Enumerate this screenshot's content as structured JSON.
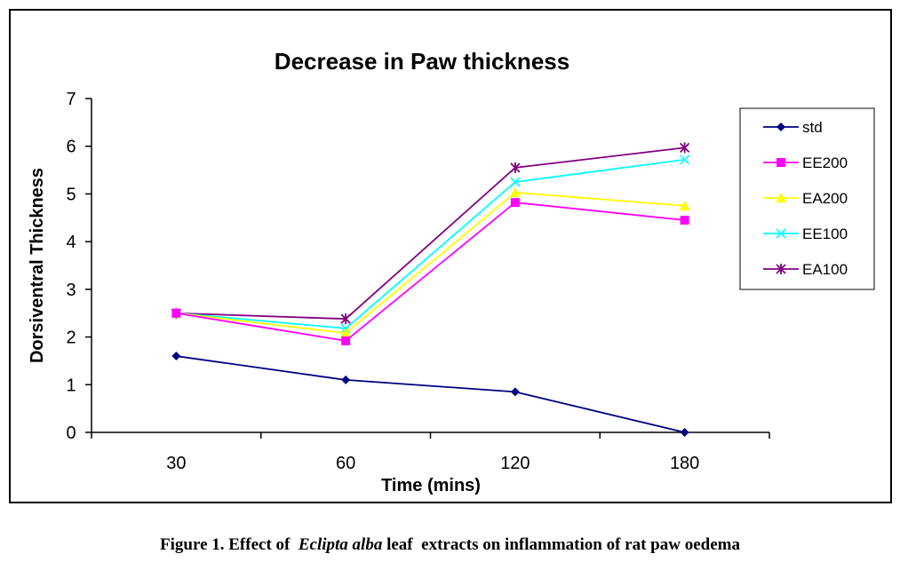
{
  "chart_data": {
    "type": "line",
    "title": "Decrease in Paw thickness",
    "xlabel": "Time (mins)",
    "ylabel": "Dorsiventral Thickness",
    "categories": [
      "30",
      "60",
      "120",
      "180"
    ],
    "ylim": [
      0,
      7
    ],
    "yticks": [
      "0",
      "1",
      "2",
      "3",
      "4",
      "5",
      "6",
      "7"
    ],
    "grid": false,
    "legend_position": "right",
    "series": [
      {
        "name": "std",
        "color": "#000080",
        "marker": "diamond",
        "values": [
          1.6,
          1.1,
          0.85,
          0.0
        ]
      },
      {
        "name": "EE200",
        "color": "#ff00ff",
        "marker": "square",
        "values": [
          2.5,
          1.92,
          4.82,
          4.45
        ]
      },
      {
        "name": "EA200",
        "color": "#ffff00",
        "marker": "triangle",
        "values": [
          2.5,
          2.08,
          5.03,
          4.75
        ]
      },
      {
        "name": "EE100",
        "color": "#00ffff",
        "marker": "x",
        "values": [
          2.5,
          2.18,
          5.25,
          5.72
        ]
      },
      {
        "name": "EA100",
        "color": "#800080",
        "marker": "star",
        "values": [
          2.5,
          2.38,
          5.55,
          5.97
        ]
      }
    ]
  },
  "caption": {
    "prefix": "Figure 1. Effect of  ",
    "italic": "Eclipta alba",
    "suffix": " leaf  extracts on inflammation of rat paw oedema"
  }
}
